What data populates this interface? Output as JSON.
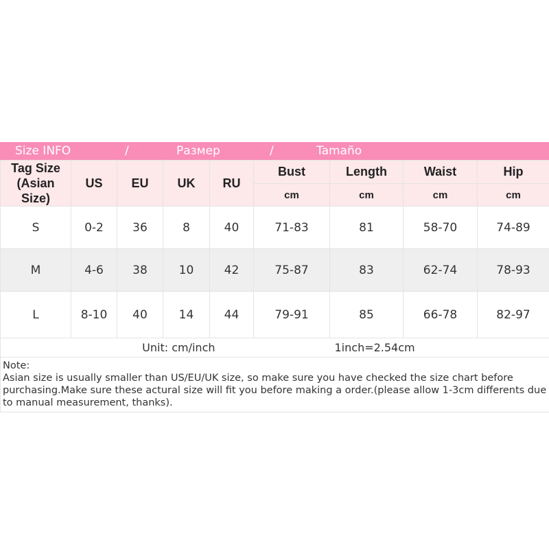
{
  "title": {
    "part1": "Size INFO",
    "sep1": "/",
    "part2": "Размер",
    "sep2": "/",
    "part3": "Tamaño"
  },
  "header": {
    "tag_size_line1": "Tag Size",
    "tag_size_line2": "(Asian Size)",
    "us": "US",
    "eu": "EU",
    "uk": "UK",
    "ru": "RU",
    "bust": "Bust",
    "length": "Length",
    "waist": "Waist",
    "hip": "Hip",
    "unit": "cm"
  },
  "rows": [
    {
      "tag": "S",
      "us": "0-2",
      "eu": "36",
      "uk": "8",
      "ru": "40",
      "bust": "71-83",
      "length": "81",
      "waist": "58-70",
      "hip": "74-89"
    },
    {
      "tag": "M",
      "us": "4-6",
      "eu": "38",
      "uk": "10",
      "ru": "42",
      "bust": "75-87",
      "length": "83",
      "waist": "62-74",
      "hip": "78-93"
    },
    {
      "tag": "L",
      "us": "8-10",
      "eu": "40",
      "uk": "14",
      "ru": "44",
      "bust": "79-91",
      "length": "85",
      "waist": "66-78",
      "hip": "82-97"
    }
  ],
  "unit_row": {
    "unit": "Unit: cm/inch",
    "conversion": "1inch=2.54cm"
  },
  "note": {
    "label": "Note:",
    "text": "Asian size is usually smaller than US/EU/UK size, so make sure you have checked the size chart before purchasing.Make sure these actural size will fit you before making a order.(please allow 1-3cm differents due to manual measurement, thanks)."
  },
  "colors": {
    "title_bar": "#f98db7",
    "header_bg": "#fde8ea",
    "alt_row": "#efefef"
  }
}
